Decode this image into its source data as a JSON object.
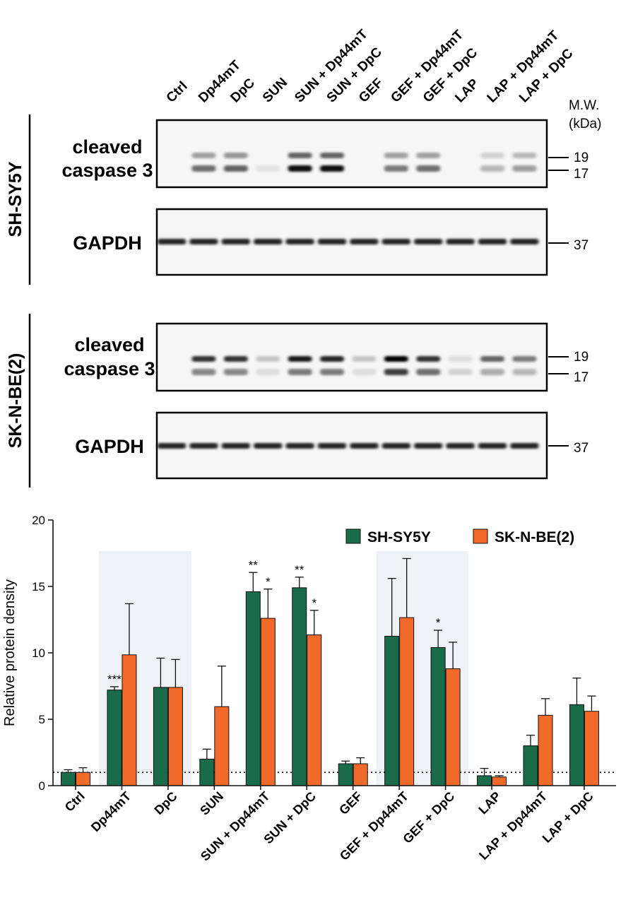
{
  "blot": {
    "lanes": [
      "Ctrl",
      "Dp44mT",
      "DpC",
      "SUN",
      "SUN + Dp44mT",
      "SUN + DpC",
      "GEF",
      "GEF + Dp44mT",
      "GEF + DpC",
      "LAP",
      "LAP + Dp44mT",
      "LAP + DpC"
    ],
    "mw_header": [
      "M.W.",
      "(kDa)"
    ],
    "panels": [
      {
        "cell_line": "SH-SY5Y",
        "caspase_label": [
          "cleaved",
          "caspase 3"
        ],
        "loading_label": "GAPDH",
        "caspase_markers": [
          "19",
          "17"
        ],
        "loading_marker": "37",
        "band_19_intensity": [
          0.02,
          0.35,
          0.4,
          0.02,
          0.6,
          0.6,
          0.02,
          0.35,
          0.35,
          0.02,
          0.15,
          0.25
        ],
        "band_17_intensity": [
          0.02,
          0.55,
          0.6,
          0.08,
          0.95,
          0.95,
          0.02,
          0.5,
          0.55,
          0.02,
          0.25,
          0.35
        ]
      },
      {
        "cell_line": "SK-N-BE(2)",
        "caspase_label": [
          "cleaved",
          "caspase 3"
        ],
        "loading_label": "GAPDH",
        "caspase_markers": [
          "19",
          "17"
        ],
        "loading_marker": "37",
        "band_19_intensity": [
          0.02,
          0.8,
          0.8,
          0.2,
          0.9,
          0.85,
          0.2,
          1.0,
          0.8,
          0.1,
          0.6,
          0.5
        ],
        "band_17_intensity": [
          0.02,
          0.45,
          0.45,
          0.1,
          0.5,
          0.5,
          0.1,
          0.75,
          0.55,
          0.15,
          0.3,
          0.25
        ]
      }
    ]
  },
  "chart_data": {
    "type": "bar",
    "categories": [
      "Ctrl",
      "Dp44mT",
      "DpC",
      "SUN",
      "SUN + Dp44mT",
      "SUN + DpC",
      "GEF",
      "GEF + Dp44mT",
      "GEF + DpC",
      "LAP",
      "LAP + Dp44mT",
      "LAP + DpC"
    ],
    "series": [
      {
        "name": "SH-SY5Y",
        "color": "#1a6b4a",
        "values": [
          1.0,
          7.2,
          7.4,
          2.0,
          14.6,
          14.9,
          1.65,
          11.25,
          10.4,
          0.75,
          3.0,
          6.1
        ],
        "errors": [
          0.2,
          0.25,
          2.2,
          0.75,
          1.45,
          0.8,
          0.2,
          4.35,
          1.3,
          0.55,
          0.8,
          2.0
        ],
        "significance": [
          "",
          "***",
          "",
          "",
          "**",
          "**",
          "",
          "",
          "*",
          "",
          "",
          ""
        ]
      },
      {
        "name": "SK-N-BE(2)",
        "color": "#f26a2a",
        "values": [
          1.0,
          9.85,
          7.4,
          5.95,
          12.6,
          11.35,
          1.65,
          12.65,
          8.8,
          0.65,
          5.3,
          5.6
        ],
        "errors": [
          0.35,
          3.85,
          2.1,
          3.05,
          2.2,
          1.85,
          0.45,
          4.45,
          2.0,
          0.1,
          1.25,
          1.15
        ],
        "significance": [
          "",
          "",
          "",
          "",
          "*",
          "*",
          "",
          "",
          "",
          "",
          "",
          ""
        ]
      }
    ],
    "ylabel": "Relative protein density",
    "xlabel": "",
    "ylim": [
      0,
      20
    ],
    "yticks": [
      0,
      5,
      10,
      15,
      20
    ],
    "reference_line": 1,
    "shaded_groups": [
      [
        1,
        2
      ],
      [
        7,
        8
      ]
    ],
    "shade_color": "#eef1f5",
    "legend_position": "top-right",
    "grid": false
  }
}
